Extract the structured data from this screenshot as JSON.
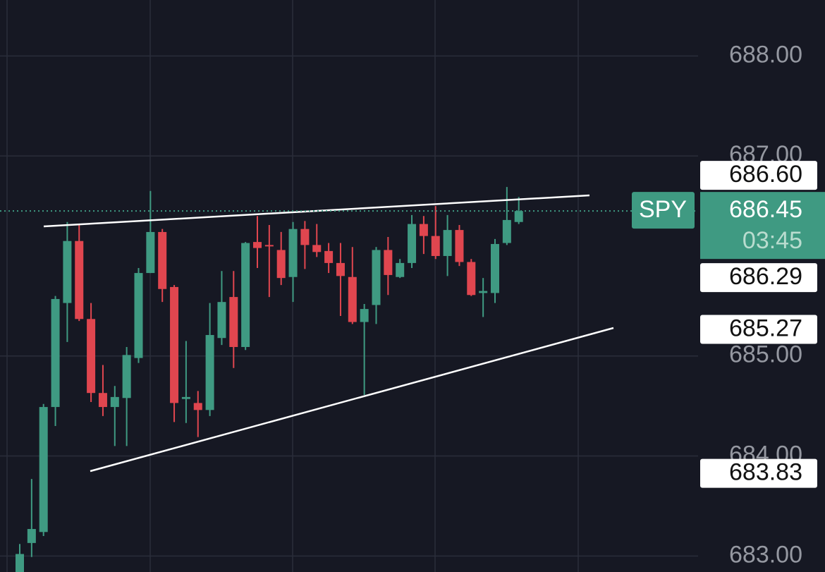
{
  "chart_data": {
    "type": "candlestick",
    "symbol": "SPY",
    "last_price": 686.45,
    "countdown": "03:45",
    "up_color": "#3f9a82",
    "down_color": "#e0464f",
    "ylim": [
      682.84,
      688.56
    ],
    "yticks": [
      {
        "value": 683,
        "label": "683.00"
      },
      {
        "value": 684,
        "label": "684.00"
      },
      {
        "value": 685,
        "label": "685.00"
      },
      {
        "value": 687,
        "label": "687.00"
      },
      {
        "value": 688,
        "label": "688.00"
      }
    ],
    "grid": true,
    "price_labels": [
      {
        "value": 686.6,
        "label": "686.60"
      },
      {
        "value": 686.29,
        "label": "686.29"
      },
      {
        "value": 685.27,
        "label": "685.27"
      },
      {
        "value": 683.83,
        "label": "683.83"
      }
    ],
    "open": [
      682.8,
      683.13,
      683.24,
      684.49,
      685.53,
      686.15,
      685.37,
      684.63,
      684.49,
      684.58,
      684.98,
      685.83,
      686.24,
      685.69,
      684.57,
      684.53,
      684.46,
      685.18,
      685.59,
      685.09,
      686.14,
      686.11,
      686.06,
      685.79,
      686.27,
      686.11,
      686.05,
      685.93,
      685.79,
      685.34,
      685.51,
      686.06,
      685.79,
      685.93,
      686.32,
      686.2,
      686.0,
      686.26,
      685.94,
      685.63,
      685.63,
      686.13,
      686.34
    ],
    "high": [
      683.12,
      683.77,
      684.52,
      685.6,
      686.34,
      686.32,
      685.53,
      684.91,
      684.7,
      685.09,
      685.88,
      686.65,
      686.27,
      685.71,
      685.15,
      684.65,
      685.53,
      685.85,
      685.85,
      686.14,
      686.4,
      686.31,
      686.24,
      686.34,
      686.35,
      686.32,
      686.13,
      686.13,
      686.09,
      685.52,
      686.09,
      686.19,
      685.97,
      686.41,
      686.4,
      686.5,
      686.41,
      686.31,
      685.97,
      685.78,
      686.17,
      686.69,
      686.59
    ],
    "low": [
      682.75,
      682.99,
      683.2,
      684.3,
      685.14,
      685.35,
      684.54,
      684.4,
      684.1,
      684.1,
      684.93,
      685.83,
      685.54,
      684.34,
      684.33,
      684.19,
      684.4,
      685.11,
      684.88,
      685.06,
      685.88,
      685.59,
      685.71,
      685.54,
      685.87,
      685.99,
      685.83,
      685.4,
      685.32,
      684.61,
      685.32,
      685.61,
      685.78,
      685.88,
      686.02,
      685.97,
      685.8,
      685.9,
      685.6,
      685.39,
      685.53,
      686.11,
      686.32
    ],
    "close": [
      683.02,
      683.27,
      684.49,
      685.57,
      686.15,
      685.37,
      684.63,
      684.49,
      684.59,
      685.01,
      685.83,
      686.24,
      685.67,
      684.53,
      684.59,
      684.46,
      685.21,
      685.54,
      685.09,
      686.13,
      686.08,
      686.1,
      685.78,
      686.27,
      686.11,
      686.04,
      685.93,
      685.8,
      685.34,
      685.47,
      686.06,
      685.81,
      685.93,
      686.32,
      686.2,
      686.0,
      686.26,
      685.94,
      685.61,
      685.65,
      686.12,
      686.36,
      686.45
    ]
  }
}
